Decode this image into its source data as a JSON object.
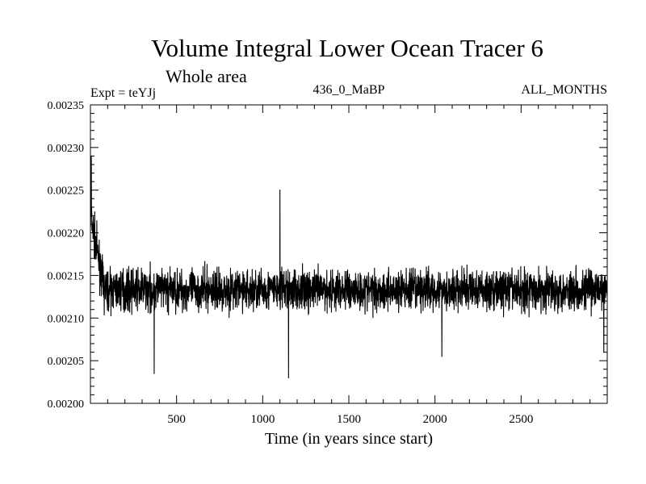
{
  "chart_data": {
    "type": "line",
    "title": "Volume Integral Lower Ocean Tracer 6",
    "subtitle": "Whole area",
    "experiment_label": "Expt = teYJj",
    "period_label": "436_0_MaBP",
    "months_label": "ALL_MONTHS",
    "xlabel": "Time (in years since start)",
    "ylabel": "",
    "xlim": [
      0,
      3000
    ],
    "ylim": [
      0.002,
      0.00235
    ],
    "x_ticks": [
      {
        "value": 500,
        "label": "500"
      },
      {
        "value": 1000,
        "label": "1000"
      },
      {
        "value": 1500,
        "label": "1500"
      },
      {
        "value": 2000,
        "label": "2000"
      },
      {
        "value": 2500,
        "label": "2500"
      }
    ],
    "y_ticks": [
      {
        "value": 0.002,
        "label": "0.00200"
      },
      {
        "value": 0.00205,
        "label": "0.00205"
      },
      {
        "value": 0.0021,
        "label": "0.00210"
      },
      {
        "value": 0.00215,
        "label": "0.00215"
      },
      {
        "value": 0.0022,
        "label": "0.00220"
      },
      {
        "value": 0.00225,
        "label": "0.00225"
      },
      {
        "value": 0.0023,
        "label": "0.00230"
      },
      {
        "value": 0.00235,
        "label": "0.00235"
      }
    ],
    "series": [
      {
        "name": "Volume Integral Lower Ocean Tracer 6",
        "color": "#000000",
        "generation": {
          "x_start": 1,
          "x_end": 3000,
          "spinup_years": 80,
          "spinup_start_mean": 0.00222,
          "baseline_mean": 0.002133,
          "noise_amplitude": 2.2e-05,
          "seed": 7
        },
        "notable_points": [
          {
            "x": 5,
            "y": 0.00229
          },
          {
            "x": 370,
            "y": 0.002035
          },
          {
            "x": 1100,
            "y": 0.00225
          },
          {
            "x": 1150,
            "y": 0.00203
          },
          {
            "x": 2040,
            "y": 0.002055
          },
          {
            "x": 2980,
            "y": 0.00206
          }
        ]
      }
    ]
  }
}
